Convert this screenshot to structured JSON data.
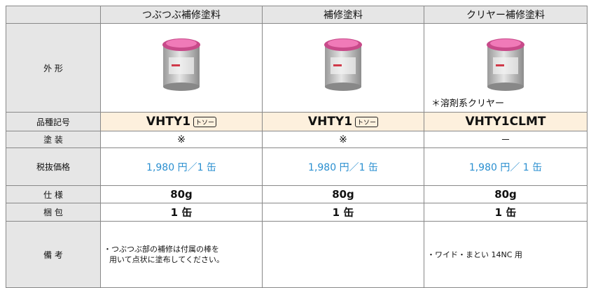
{
  "table": {
    "row_labels": [
      "外 形",
      "品種記号",
      "塗 装",
      "税抜価格",
      "仕 様",
      "梱 包",
      "備 考"
    ],
    "columns": [
      {
        "name": "つぶつぶ補修塗料",
        "model": "VHTY1",
        "badge": "トソー",
        "coating": "※",
        "price": "1,980 円／1 缶",
        "spec": "80g",
        "packing": "1 缶",
        "remarks": [
          "・つぶつぶ部の補修は付属の棒を",
          "用いて点状に塗布してください。"
        ]
      },
      {
        "name": "補修塗料",
        "model": "VHTY1",
        "badge": "トソー",
        "coating": "※",
        "price": "1,980 円／1 缶",
        "spec": "80g",
        "packing": "1 缶"
      },
      {
        "name": "クリヤー補修塗料",
        "note": "＊溶剤系クリヤー",
        "model": "VHTY1CLMT",
        "coating": "－",
        "price": "1,980 円／ 1 缶",
        "spec": "80g",
        "packing": "1 缶",
        "remarks": [
          "・ワイド・まとい 14NC 用"
        ]
      }
    ]
  }
}
